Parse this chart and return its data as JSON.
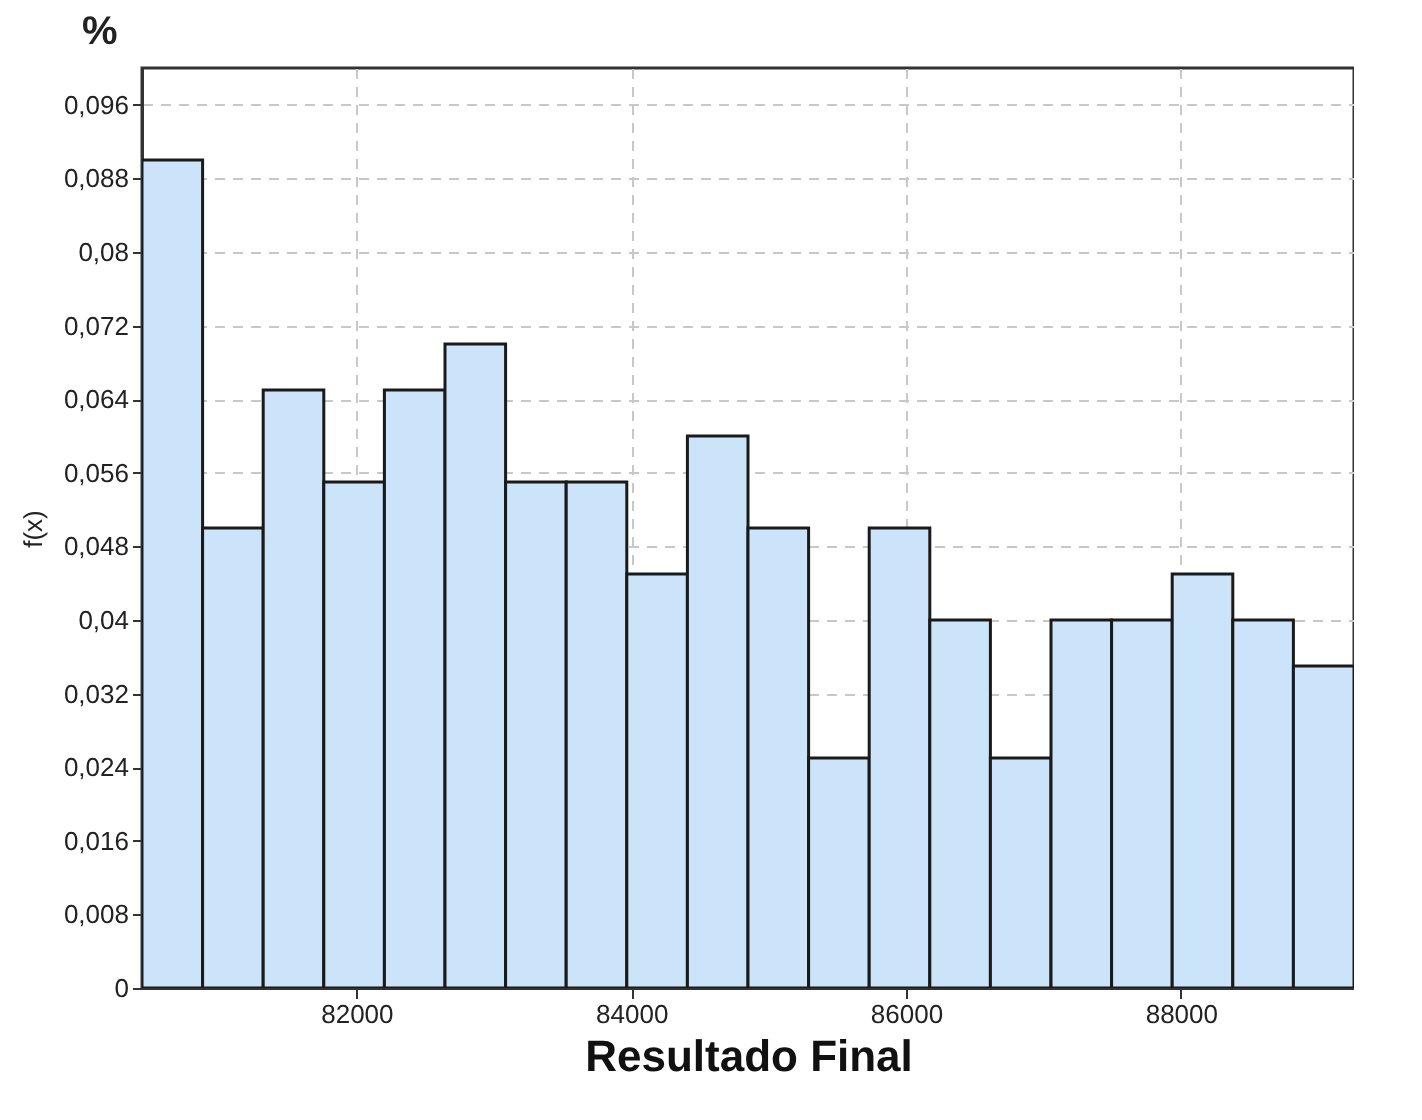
{
  "chart_data": {
    "type": "histogram",
    "title": "%",
    "xlabel": "Resultado Final",
    "ylabel": "f(x)",
    "bins": [
      80440,
      80881,
      81322,
      81763,
      82204,
      82645,
      83086,
      83527,
      83968,
      84409,
      84850,
      85291,
      85732,
      86173,
      86614,
      87055,
      87496,
      87937,
      88378,
      88819,
      89260
    ],
    "values": [
      0.09,
      0.05,
      0.065,
      0.055,
      0.065,
      0.07,
      0.055,
      0.055,
      0.045,
      0.06,
      0.05,
      0.025,
      0.05,
      0.04,
      0.025,
      0.04,
      0.04,
      0.045,
      0.04,
      0.035
    ],
    "color": "#cce4f9",
    "xlim": [
      80440,
      89260
    ],
    "xticks": [
      82000,
      84000,
      86000,
      88000
    ],
    "ylim": [
      0,
      0.1
    ],
    "yticks": [
      0,
      {
        "value": 0.008,
        "label": "0,008"
      },
      {
        "value": 0.016,
        "label": "0,016"
      },
      {
        "value": 0.024,
        "label": "0,024"
      },
      {
        "value": 0.032,
        "label": "0,032"
      },
      {
        "value": 0.04,
        "label": "0,04"
      },
      {
        "value": 0.048,
        "label": "0,048"
      },
      {
        "value": 0.056,
        "label": "0,056"
      },
      {
        "value": 0.064,
        "label": "0,064"
      },
      {
        "value": 0.072,
        "label": "0,072"
      },
      {
        "value": 0.08,
        "label": "0,08"
      },
      {
        "value": 0.088,
        "label": "0,088"
      },
      {
        "value": 0.096,
        "label": "0,096"
      }
    ],
    "grid": true
  }
}
